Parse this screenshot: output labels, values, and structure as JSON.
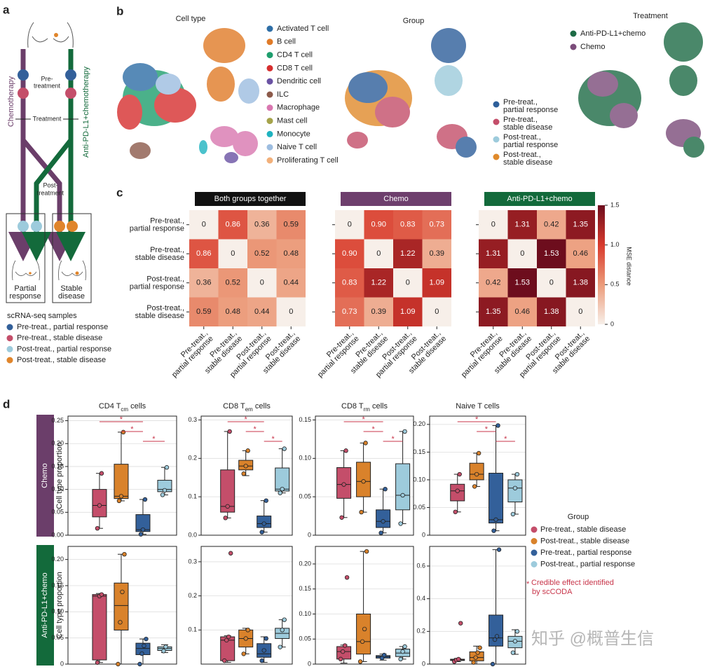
{
  "panel_a": {
    "label": "a",
    "pre_treatment": [
      "Pre-",
      "treatment"
    ],
    "arm_left": "Chemotherapy",
    "arm_right": "Anti-PD-L1+chemotherapy",
    "treatment": "Treatment",
    "post_treatment": [
      "Post-",
      "treatment"
    ],
    "outcome_left": [
      "Partial",
      "response"
    ],
    "outcome_right": [
      "Stable",
      "disease"
    ],
    "legend_title": "scRNA-seq samples",
    "legend": [
      {
        "name": "Pre-treat., partial response",
        "color": "#33609a"
      },
      {
        "name": "Pre-treat., stable disease",
        "color": "#c44e6a"
      },
      {
        "name": "Post-treat., partial response",
        "color": "#9dcbdc"
      },
      {
        "name": "Post-treat., stable disease",
        "color": "#e0852b"
      }
    ]
  },
  "panel_b": {
    "label": "b",
    "umaps": [
      {
        "title": "Cell type",
        "legend": [
          {
            "name": "Activated T cell",
            "color": "#2e6ea6"
          },
          {
            "name": "B cell",
            "color": "#e07b28"
          },
          {
            "name": "CD4 T cell",
            "color": "#1f9e6e"
          },
          {
            "name": "CD8 T cell",
            "color": "#d62f2f"
          },
          {
            "name": "Dendritic cell",
            "color": "#6a52a3"
          },
          {
            "name": "ILC",
            "color": "#8c5a4a"
          },
          {
            "name": "Macrophage",
            "color": "#d977b0"
          },
          {
            "name": "Mast cell",
            "color": "#a5a34a"
          },
          {
            "name": "Monocyte",
            "color": "#1fb3c0"
          },
          {
            "name": "Naive T cell",
            "color": "#9dbde0"
          },
          {
            "name": "Proliferating T cell",
            "color": "#f2b07a"
          }
        ]
      },
      {
        "title": "Group",
        "legend": [
          {
            "name": [
              "Pre-treat.,",
              "partial response"
            ],
            "color": "#2e5f9a"
          },
          {
            "name": [
              "Pre-treat.,",
              "stable disease"
            ],
            "color": "#c44e6a"
          },
          {
            "name": [
              "Post-treat.,",
              "partial response"
            ],
            "color": "#9dcbdc"
          },
          {
            "name": [
              "Post-treat.,",
              "stable disease"
            ],
            "color": "#e08a2b"
          }
        ]
      },
      {
        "title": "Treatment",
        "legend": [
          {
            "name": "Anti-PD-L1+chemo",
            "color": "#1d6b45"
          },
          {
            "name": "Chemo",
            "color": "#7b4c7a"
          }
        ]
      }
    ]
  },
  "chart_data": [
    {
      "type": "heatmap",
      "label": "c",
      "title": "Both groups together",
      "title_color": "#111111",
      "categories": [
        [
          "Pre-treat.,",
          "partial response"
        ],
        [
          "Pre-treat.,",
          "stable disease"
        ],
        [
          "Post-treat.,",
          "partial response"
        ],
        [
          "Post-treat.,",
          "stable disease"
        ]
      ],
      "values": [
        [
          0,
          0.86,
          0.36,
          0.59
        ],
        [
          0.86,
          0,
          0.52,
          0.48
        ],
        [
          0.36,
          0.52,
          0,
          0.44
        ],
        [
          0.59,
          0.48,
          0.44,
          0
        ]
      ],
      "value_labels": [
        [
          "0",
          "0.86",
          "0.36",
          "0.59"
        ],
        [
          "0.86",
          "0",
          "0.52",
          "0.48"
        ],
        [
          "0.36",
          "0.52",
          "0",
          "0.44"
        ],
        [
          "0.59",
          "0.48",
          "0.44",
          "0"
        ]
      ],
      "zlim": [
        0,
        1.5
      ],
      "cmap": [
        "#f7efe9",
        "#ec9b7a",
        "#d83a2d",
        "#6d0d1d"
      ]
    },
    {
      "type": "heatmap",
      "title": "Chemo",
      "title_color": "#6e3f6d",
      "categories": [
        [
          "Pre-treat.,",
          "partial response"
        ],
        [
          "Pre-treat.,",
          "stable disease"
        ],
        [
          "Post-treat.,",
          "partial response"
        ],
        [
          "Post-treat.,",
          "stable disease"
        ]
      ],
      "values": [
        [
          0,
          0.9,
          0.83,
          0.73
        ],
        [
          0.9,
          0,
          1.22,
          0.39
        ],
        [
          0.83,
          1.22,
          0,
          1.09
        ],
        [
          0.73,
          0.39,
          1.09,
          0
        ]
      ],
      "value_labels": [
        [
          "0",
          "0.90",
          "0.83",
          "0.73"
        ],
        [
          "0.90",
          "0",
          "1.22",
          "0.39"
        ],
        [
          "0.83",
          "1.22",
          "0",
          "1.09"
        ],
        [
          "0.73",
          "0.39",
          "1.09",
          "0"
        ]
      ],
      "zlim": [
        0,
        1.5
      ],
      "cmap": [
        "#f7efe9",
        "#ec9b7a",
        "#d83a2d",
        "#6d0d1d"
      ]
    },
    {
      "type": "heatmap",
      "title": "Anti-PD-L1+chemo",
      "title_color": "#136a3b",
      "categories": [
        [
          "Pre-treat.,",
          "partial response"
        ],
        [
          "Pre-treat.,",
          "stable disease"
        ],
        [
          "Post-treat.,",
          "partial response"
        ],
        [
          "Post-treat.,",
          "stable disease"
        ]
      ],
      "values": [
        [
          0,
          1.31,
          0.42,
          1.35
        ],
        [
          1.31,
          0,
          1.53,
          0.46
        ],
        [
          0.42,
          1.53,
          0,
          1.38
        ],
        [
          1.35,
          0.46,
          1.38,
          0
        ]
      ],
      "value_labels": [
        [
          "0",
          "1.31",
          "0.42",
          "1.35"
        ],
        [
          "1.31",
          "0",
          "1.53",
          "0.46"
        ],
        [
          "0.42",
          "1.53",
          "0",
          "1.38"
        ],
        [
          "1.35",
          "0.46",
          "1.38",
          "0"
        ]
      ],
      "zlim": [
        0,
        1.5
      ],
      "cmap": [
        "#f7efe9",
        "#ec9b7a",
        "#d83a2d",
        "#6d0d1d"
      ],
      "colorbar": {
        "label": "MSE distance",
        "ticks": [
          0,
          0.5,
          {
            "value": 1,
            "label": "1.0"
          },
          1.5
        ]
      }
    },
    {
      "type": "box",
      "label": "d",
      "row_label": "Chemo",
      "row_color": "#6b3e6a",
      "ylabel": "Cell type proportion",
      "title": [
        "CD4 T",
        "cm",
        " cells"
      ],
      "ylim": [
        0,
        0.26
      ],
      "yticks": [
        {
          "value": 0,
          "label": "0.00"
        },
        0.05,
        {
          "value": 0.1,
          "label": "0.10"
        },
        0.15,
        {
          "value": 0.2,
          "label": "0.20"
        },
        0.25
      ],
      "grid": true,
      "boxes": [
        {
          "whislo": 0.015,
          "q1": 0.04,
          "median": 0.065,
          "q3": 0.1,
          "whishi": 0.135,
          "points": [
            0.015,
            0.065,
            0.135
          ]
        },
        {
          "whislo": 0.075,
          "q1": 0.08,
          "median": 0.085,
          "q3": 0.155,
          "whishi": 0.225,
          "points": [
            0.075,
            0.085,
            0.225
          ]
        },
        {
          "whislo": 0.002,
          "q1": 0.008,
          "median": 0.012,
          "q3": 0.045,
          "whishi": 0.078,
          "points": [
            0.002,
            0.012,
            0.078
          ]
        },
        {
          "whislo": 0.088,
          "q1": 0.095,
          "median": 0.1,
          "q3": 0.12,
          "whishi": 0.148,
          "points": [
            0.088,
            0.098,
            0.148
          ]
        }
      ],
      "significant_pairs": [
        [
          0,
          2
        ],
        [
          1,
          2
        ],
        [
          2,
          3
        ]
      ]
    },
    {
      "type": "box",
      "title": [
        "CD8 T",
        "em",
        " cells"
      ],
      "ylim": [
        0,
        0.31
      ],
      "yticks": [
        {
          "value": 0,
          "label": "0.0"
        },
        0.1,
        0.2,
        0.3
      ],
      "grid": true,
      "boxes": [
        {
          "whislo": 0.045,
          "q1": 0.06,
          "median": 0.075,
          "q3": 0.17,
          "whishi": 0.27,
          "points": [
            0.045,
            0.075,
            0.27
          ]
        },
        {
          "whislo": 0.155,
          "q1": 0.17,
          "median": 0.18,
          "q3": 0.195,
          "whishi": 0.22,
          "points": [
            0.16,
            0.18,
            0.22
          ]
        },
        {
          "whislo": 0.008,
          "q1": 0.02,
          "median": 0.03,
          "q3": 0.05,
          "whishi": 0.09,
          "points": [
            0.008,
            0.03,
            0.09
          ]
        },
        {
          "whislo": 0.11,
          "q1": 0.115,
          "median": 0.12,
          "q3": 0.175,
          "whishi": 0.225,
          "points": [
            0.11,
            0.12,
            0.225
          ]
        }
      ],
      "significant_pairs": [
        [
          0,
          2
        ],
        [
          1,
          2
        ],
        [
          2,
          3
        ]
      ]
    },
    {
      "type": "box",
      "title": [
        "CD8 T",
        "rm",
        " cells"
      ],
      "ylim": [
        0,
        0.155
      ],
      "yticks": [
        0,
        0.05,
        {
          "value": 0.1,
          "label": "0.10"
        },
        0.15
      ],
      "grid": true,
      "boxes": [
        {
          "whislo": 0.023,
          "q1": 0.048,
          "median": 0.066,
          "q3": 0.088,
          "whishi": 0.11,
          "points": [
            0.023,
            0.066,
            0.11
          ]
        },
        {
          "whislo": 0.03,
          "q1": 0.05,
          "median": 0.07,
          "q3": 0.095,
          "whishi": 0.12,
          "points": [
            0.03,
            0.07,
            0.12
          ]
        },
        {
          "whislo": 0.003,
          "q1": 0.01,
          "median": 0.018,
          "q3": 0.033,
          "whishi": 0.06,
          "points": [
            0.003,
            0.018,
            0.06
          ]
        },
        {
          "whislo": 0.015,
          "q1": 0.033,
          "median": 0.052,
          "q3": 0.093,
          "whishi": 0.135,
          "points": [
            0.015,
            0.052,
            0.135
          ]
        }
      ],
      "significant_pairs": [
        [
          0,
          2
        ],
        [
          1,
          2
        ],
        [
          2,
          3
        ]
      ]
    },
    {
      "type": "box",
      "title": [
        "Naive T cells"
      ],
      "ylim": [
        0,
        0.215
      ],
      "yticks": [
        0,
        0.05,
        {
          "value": 0.1,
          "label": "0.10"
        },
        0.15,
        {
          "value": 0.2,
          "label": "0.20"
        }
      ],
      "grid": true,
      "boxes": [
        {
          "whislo": 0.042,
          "q1": 0.062,
          "median": 0.08,
          "q3": 0.092,
          "whishi": 0.11,
          "points": [
            0.042,
            0.08,
            0.11
          ]
        },
        {
          "whislo": 0.088,
          "q1": 0.1,
          "median": 0.11,
          "q3": 0.13,
          "whishi": 0.148,
          "points": [
            0.088,
            0.11,
            0.148
          ]
        },
        {
          "whislo": 0.008,
          "q1": 0.022,
          "median": 0.028,
          "q3": 0.112,
          "whishi": 0.198,
          "points": [
            0.008,
            0.028,
            0.198
          ]
        },
        {
          "whislo": 0.038,
          "q1": 0.06,
          "median": 0.085,
          "q3": 0.1,
          "whishi": 0.11,
          "points": [
            0.038,
            0.085,
            0.11
          ]
        }
      ],
      "significant_pairs": [
        [
          0,
          2
        ],
        [
          1,
          2
        ],
        [
          2,
          3
        ]
      ]
    },
    {
      "type": "box",
      "row_label": "Anti-PD-L1+chemo",
      "row_color": "#136a3b",
      "ylabel": "Cell type proportion",
      "ylim": [
        0,
        0.225
      ],
      "yticks": [
        0,
        0.05,
        {
          "value": 0.1,
          "label": "0.10"
        },
        0.15,
        {
          "value": 0.2,
          "label": "0.20"
        }
      ],
      "grid": true,
      "boxes": [
        {
          "whislo": 0.003,
          "q1": 0.008,
          "median": 0.13,
          "q3": 0.133,
          "whishi": 0.135,
          "points": [
            0.003,
            0.13,
            0.133
          ]
        },
        {
          "whislo": 0,
          "q1": 0.065,
          "median": 0.112,
          "q3": 0.155,
          "whishi": 0.21,
          "points": [
            0,
            0.08,
            0.138,
            0.21
          ]
        },
        {
          "whislo": 0,
          "q1": 0.018,
          "median": 0.03,
          "q3": 0.04,
          "whishi": 0.048,
          "points": [
            0,
            0.02,
            0.035,
            0.048
          ]
        },
        {
          "whislo": 0.022,
          "q1": 0.026,
          "median": 0.03,
          "q3": 0.033,
          "whishi": 0.037,
          "points": [
            0.025,
            0.033
          ]
        }
      ]
    },
    {
      "type": "box",
      "ylim": [
        0,
        0.345
      ],
      "yticks": [
        0.1,
        0.2,
        0.3
      ],
      "grid": true,
      "boxes": [
        {
          "whislo": 0.005,
          "q1": 0.01,
          "median": 0.07,
          "q3": 0.08,
          "whishi": 0.083,
          "points": [
            0.01,
            0.07,
            0.08,
            0.325
          ]
        },
        {
          "whislo": 0.03,
          "q1": 0.05,
          "median": 0.075,
          "q3": 0.1,
          "whishi": 0.105,
          "points": [
            0.03,
            0.075,
            0.1
          ]
        },
        {
          "whislo": 0.005,
          "q1": 0.02,
          "median": 0.03,
          "q3": 0.06,
          "whishi": 0.08,
          "points": [
            0.01,
            0.04,
            0.075
          ]
        },
        {
          "whislo": 0.05,
          "q1": 0.075,
          "median": 0.09,
          "q3": 0.105,
          "whishi": 0.13,
          "points": [
            0.05,
            0.1,
            0.13
          ]
        }
      ]
    },
    {
      "type": "box",
      "ylim": [
        0,
        0.235
      ],
      "yticks": [
        0,
        0.05,
        {
          "value": 0.1,
          "label": "0.10"
        },
        0.15,
        {
          "value": 0.2,
          "label": "0.20"
        }
      ],
      "grid": true,
      "boxes": [
        {
          "whislo": 0.002,
          "q1": 0.01,
          "median": 0.025,
          "q3": 0.035,
          "whishi": 0.038,
          "points": [
            0.01,
            0.025,
            0.037,
            0.173
          ]
        },
        {
          "whislo": 0.005,
          "q1": 0.02,
          "median": 0.045,
          "q3": 0.1,
          "whishi": 0.225,
          "points": [
            0.005,
            0.045,
            0.07,
            0.225
          ]
        },
        {
          "whislo": 0.008,
          "q1": 0.012,
          "median": 0.015,
          "q3": 0.017,
          "whishi": 0.02,
          "points": [
            0.012,
            0.018
          ]
        },
        {
          "whislo": 0.01,
          "q1": 0.015,
          "median": 0.022,
          "q3": 0.03,
          "whishi": 0.035,
          "points": [
            0.01,
            0.025,
            0.035
          ]
        }
      ]
    },
    {
      "type": "box",
      "ylim": [
        0,
        0.72
      ],
      "yticks": [
        0,
        0.2,
        0.4,
        0.6
      ],
      "grid": true,
      "boxes": [
        {
          "whislo": 0.015,
          "q1": 0.022,
          "median": 0.025,
          "q3": 0.03,
          "whishi": 0.035,
          "points": [
            0.015,
            0.025,
            0.03,
            0.25
          ]
        },
        {
          "whislo": 0,
          "q1": 0.02,
          "median": 0.04,
          "q3": 0.075,
          "whishi": 0.11,
          "points": [
            0.01,
            0.04,
            0.07,
            0.1
          ]
        },
        {
          "whislo": 0,
          "q1": 0.11,
          "median": 0.16,
          "q3": 0.3,
          "whishi": 0.7,
          "points": [
            0,
            0.15,
            0.17,
            0.7
          ]
        },
        {
          "whislo": 0.06,
          "q1": 0.1,
          "median": 0.14,
          "q3": 0.17,
          "whishi": 0.21,
          "points": [
            0.07,
            0.14,
            0.2
          ]
        }
      ]
    }
  ],
  "group_legend": {
    "title": "Group",
    "entries": [
      {
        "name": "Pre-treat., stable disease",
        "color": "#c44e6a"
      },
      {
        "name": "Post-treat., stable disease",
        "color": "#d9822b"
      },
      {
        "name": "Pre-treat., partial response",
        "color": "#33609a"
      },
      {
        "name": "Post-treat., partial response",
        "color": "#9dcbdc"
      }
    ],
    "star": "*",
    "star_color": "#c8354a",
    "footnote": [
      "Credible effect identified",
      "by scCODA"
    ]
  },
  "watermark": "知乎 @概普生信"
}
